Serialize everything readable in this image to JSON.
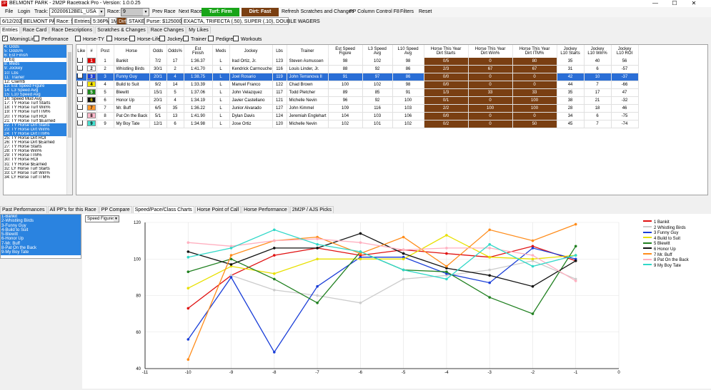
{
  "window": {
    "title": "BELMONT PARK - 2M2P Racetrack Pro - Version: 1.0.0.25",
    "minimize": "—",
    "maximize": "☐",
    "close": "✕"
  },
  "menubar": {
    "file": "File",
    "login": "Login",
    "track_label": "Track:",
    "track_value": "20200612BEL_USA",
    "race_label": "Race:",
    "race_value": "9",
    "prev_race": "Prev Race",
    "next_race": "Next Race",
    "turf": "Turf: Firm",
    "dirt": "Dirt: Fast",
    "refresh": "Refresh Scratches and Changes",
    "pp_column": "PP Column Control F8",
    "filters": "Filters",
    "reset": "Reset",
    "turf_color": "#18a418",
    "dirt_color": "#7a3f12"
  },
  "infobar": {
    "date": "6/12/2020",
    "track": "BELMONT PARK",
    "race": "Race: 9",
    "entries": "Entries: 9",
    "post_time": "5:36PM",
    "distance": "1M",
    "surface": "Dirt",
    "race_type": "STAKES",
    "purse": "Purse: $125000.00",
    "wagers": "EXACTA, TRIFECTA (.50), SUPER (.10), DOUBLE WAGERS"
  },
  "tabs_top": [
    "Entries",
    "Race Card",
    "Race Descriptions",
    "Scratches & Changes",
    "Race Changes",
    "My Likes"
  ],
  "checkbox_bar": [
    {
      "label": "MorningLine",
      "checked": true
    },
    {
      "label": "Perfomance",
      "checked": false
    },
    {
      "label": "Horse-TY",
      "checked": false
    },
    {
      "label": "Horse-LY",
      "checked": false
    },
    {
      "label": "Horse-Life",
      "checked": false
    },
    {
      "label": "Jockey",
      "checked": false
    },
    {
      "label": "Trainer",
      "checked": false
    },
    {
      "label": "Pedigree",
      "checked": false
    },
    {
      "label": "Workouts",
      "checked": false
    }
  ],
  "column_list": [
    {
      "label": "4: Odds",
      "sel": true
    },
    {
      "label": "5: Odds%",
      "sel": true
    },
    {
      "label": "6: Est Finish",
      "sel": true
    },
    {
      "label": "7: Eq",
      "sel": false
    },
    {
      "label": "8: Meds",
      "sel": true
    },
    {
      "label": "9: Jockey",
      "sel": true
    },
    {
      "label": "10: Lbs",
      "sel": true
    },
    {
      "label": "11: Trainer",
      "sel": true
    },
    {
      "label": "12: Claim$",
      "sel": false
    },
    {
      "label": "13: Est Speed Figure",
      "sel": true
    },
    {
      "label": "14: L3 Speed Avg",
      "sel": true
    },
    {
      "label": "15: L10 Speed Avg",
      "sel": true
    },
    {
      "label": "16: Speed Mud Avg",
      "sel": false
    },
    {
      "label": "17: TY Horse Turf Starts",
      "sel": false
    },
    {
      "label": "18: TY Horse Turf Win%",
      "sel": false
    },
    {
      "label": "19: TY Horse Turf ITM%",
      "sel": false
    },
    {
      "label": "20: TY Horse Turf ROI",
      "sel": false
    },
    {
      "label": "21: TY Horse Turf $Earned",
      "sel": false
    },
    {
      "label": "22: TY Horse Dirt Starts",
      "sel": true
    },
    {
      "label": "23: TY Horse Dirt Win%",
      "sel": true
    },
    {
      "label": "24: TY Horse Dirt ITM%",
      "sel": true
    },
    {
      "label": "25: TY Horse Dirt ROI",
      "sel": false
    },
    {
      "label": "26: TY Horse Dirt $Earned",
      "sel": false
    },
    {
      "label": "27: TY Horse Starts",
      "sel": false
    },
    {
      "label": "28: TY Horse Win%",
      "sel": false
    },
    {
      "label": "29: TY Horse ITM%",
      "sel": false
    },
    {
      "label": "30: TY Horse ROI",
      "sel": false
    },
    {
      "label": "31: TY Horse $Earned",
      "sel": false
    },
    {
      "label": "32: LY Horse Turf Starts",
      "sel": false
    },
    {
      "label": "33: LY Horse Turf Win%",
      "sel": false
    },
    {
      "label": "34: LY Horse Turf ITM%",
      "sel": false
    }
  ],
  "entries_table": {
    "headers": [
      "Like",
      "#",
      "Post",
      "Horse",
      "Odds",
      "Odds%",
      "Est\nFinish",
      "Meds",
      "Jockey",
      "Lbs",
      "Trainer",
      "Est Speed\nFigure",
      "L3 Speed\nAvg",
      "L10 Speed\nAvg",
      "Horse This Year\nDirt Starts",
      "Horse This Year\nDirt Win%",
      "Horse This Year\nDirt ITM%",
      "Jockey\nL10 Starts",
      "Jockey\nL10 Win%",
      "Jockey\nL10 ROI"
    ],
    "rows": [
      {
        "num": "1",
        "num_bg": "#e00000",
        "num_fg": "#ffffff",
        "post": "1",
        "horse": "Bankit",
        "odds": "7/2",
        "oddsp": "17",
        "finish": "1:36.37",
        "meds": "L",
        "jockey": "Irad Ortiz, Jr.",
        "lbs": "123",
        "trainer": "Steven Asmussen",
        "esf": "98",
        "l3": "102",
        "l10": "98",
        "ds": "0/5",
        "dw": "0",
        "ditm": "80",
        "js": "35",
        "jw": "40",
        "jroi": "56",
        "selected": false
      },
      {
        "num": "2",
        "num_bg": "#ffffff",
        "num_fg": "#000000",
        "post": "2",
        "horse": "Whistling Birds",
        "odds": "30/1",
        "oddsp": "2",
        "finish": "1:41.70",
        "meds": "L",
        "jockey": "Kendrick Carmouche",
        "lbs": "116",
        "trainer": "Louis Linder, Jr.",
        "esf": "88",
        "l3": "92",
        "l10": "86",
        "ds": "2/3",
        "dw": "67",
        "ditm": "67",
        "js": "31",
        "jw": "6",
        "jroi": "-57",
        "selected": false
      },
      {
        "num": "3",
        "num_bg": "#1a3ed8",
        "num_fg": "#ffffff",
        "post": "3",
        "horse": "Funny Guy",
        "odds": "20/1",
        "oddsp": "4",
        "finish": "1:38.75",
        "meds": "L",
        "jockey": "Joel Rosario",
        "lbs": "119",
        "trainer": "John Terranova II",
        "esf": "91",
        "l3": "97",
        "l10": "86",
        "ds": "0/0",
        "dw": "0",
        "ditm": "0",
        "js": "42",
        "jw": "10",
        "jroi": "-37",
        "selected": true
      },
      {
        "num": "4",
        "num_bg": "#f5e400",
        "num_fg": "#000000",
        "post": "4",
        "horse": "Build to Suit",
        "odds": "9/2",
        "oddsp": "14",
        "finish": "1:33.39",
        "meds": "L",
        "jockey": "Manuel Franco",
        "lbs": "122",
        "trainer": "Chad Brown",
        "esf": "100",
        "l3": "102",
        "l10": "98",
        "ds": "0/0",
        "dw": "0",
        "ditm": "0",
        "js": "44",
        "jw": "7",
        "jroi": "-66",
        "selected": false
      },
      {
        "num": "5",
        "num_bg": "#1a8a1a",
        "num_fg": "#ffffff",
        "post": "5",
        "horse": "Blewitt",
        "odds": "15/1",
        "oddsp": "5",
        "finish": "1:37.06",
        "meds": "L",
        "jockey": "John Velazquez",
        "lbs": "117",
        "trainer": "Todd Pletcher",
        "esf": "89",
        "l3": "85",
        "l10": "91",
        "ds": "1/3",
        "dw": "33",
        "ditm": "33",
        "js": "35",
        "jw": "17",
        "jroi": "47",
        "selected": false
      },
      {
        "num": "6",
        "num_bg": "#111111",
        "num_fg": "#f5e400",
        "post": "6",
        "horse": "Honor Up",
        "odds": "20/1",
        "oddsp": "4",
        "finish": "1:34.19",
        "meds": "L",
        "jockey": "Javier Castellano",
        "lbs": "121",
        "trainer": "Michelle Nevin",
        "esf": "96",
        "l3": "92",
        "l10": "100",
        "ds": "0/1",
        "dw": "0",
        "ditm": "100",
        "js": "38",
        "jw": "21",
        "jroi": "-32",
        "selected": false
      },
      {
        "num": "7",
        "num_bg": "#ff9a2e",
        "num_fg": "#000000",
        "post": "7",
        "horse": "Mr. Buff",
        "odds": "6/5",
        "oddsp": "35",
        "finish": "1:36.22",
        "meds": "L",
        "jockey": "Junior Alvarado",
        "lbs": "127",
        "trainer": "John Kimmel",
        "esf": "109",
        "l3": "116",
        "l10": "103",
        "ds": "2/2",
        "dw": "100",
        "ditm": "100",
        "js": "28",
        "jw": "18",
        "jroi": "46",
        "selected": false
      },
      {
        "num": "8",
        "num_bg": "#ffb6c8",
        "num_fg": "#000000",
        "post": "8",
        "horse": "Pat On the Back",
        "odds": "5/1",
        "oddsp": "13",
        "finish": "1:41.90",
        "meds": "L",
        "jockey": "Dylan Davis",
        "lbs": "124",
        "trainer": "Jeremiah Englehart",
        "esf": "104",
        "l3": "103",
        "l10": "106",
        "ds": "0/0",
        "dw": "0",
        "ditm": "0",
        "js": "34",
        "jw": "6",
        "jroi": "-75",
        "selected": false
      },
      {
        "num": "9",
        "num_bg": "#44e0d0",
        "num_fg": "#000000",
        "post": "9",
        "horse": "My Boy Tate",
        "odds": "12/1",
        "oddsp": "6",
        "finish": "1:34.98",
        "meds": "L",
        "jockey": "Jose Ortiz",
        "lbs": "120",
        "trainer": "Michelle Nevin",
        "esf": "102",
        "l3": "101",
        "l10": "102",
        "ds": "0/2",
        "dw": "0",
        "ditm": "50",
        "js": "45",
        "jw": "7",
        "jroi": "-74",
        "selected": false
      }
    ]
  },
  "tabs_bottom": [
    "Past Performances",
    "All PP's for this Race",
    "PP Compare",
    "Speed/Pace/Class Charts",
    "Horse Point of Call",
    "Horse Performance",
    "2M2P / AJS Picks"
  ],
  "horse_list": [
    "1-Bankit",
    "2-Whistling Birds",
    "3-Funny Guy",
    "4-Build to Suit",
    "5-Blewitt",
    "6-Honor Up",
    "7-Mr. Buff",
    "8-Pat On the Back",
    "9-My Boy Tate"
  ],
  "chart_selector": "Speed Figures",
  "chart_data": {
    "type": "line",
    "title": "",
    "xlabel": "",
    "ylabel": "",
    "xlim": [
      -11,
      0
    ],
    "ylim": [
      40,
      120
    ],
    "xticks": [
      "-11",
      "-10",
      "-9",
      "-8",
      "-7",
      "-6",
      "-5",
      "-4",
      "-3",
      "-2",
      "-1",
      "0"
    ],
    "yticks": [
      "40",
      "60",
      "80",
      "100",
      "120"
    ],
    "grid": true,
    "legend_position": "right",
    "x": [
      -10,
      -9,
      -8,
      -7,
      -6,
      -5,
      -4,
      -3,
      -2,
      -1
    ],
    "series": [
      {
        "name": "1 Bankit",
        "color": "#e01010",
        "values": [
          73,
          91,
          102,
          106,
          102,
          105,
          103,
          101,
          107,
          99
        ]
      },
      {
        "name": "2 Whistling Birds",
        "color": "#cccccc",
        "values": [
          null,
          91,
          83,
          80,
          76,
          89,
          91,
          94,
          99,
          89
        ]
      },
      {
        "name": "3 Funny Guy",
        "color": "#1a3ed8",
        "values": [
          56,
          90,
          49,
          85,
          101,
          101,
          92,
          87,
          106,
          100
        ]
      },
      {
        "name": "4 Build to Suit",
        "color": "#e8e000",
        "values": [
          84,
          96,
          92,
          100,
          100,
          100,
          113,
          101,
          100,
          102
        ]
      },
      {
        "name": "5 Blewitt",
        "color": "#208020",
        "values": [
          93,
          100,
          89,
          76,
          104,
          94,
          93,
          79,
          70,
          107
        ]
      },
      {
        "name": "6 Honor Up",
        "color": "#111111",
        "values": [
          104,
          97,
          106,
          106,
          114,
          103,
          95,
          91,
          85,
          99
        ]
      },
      {
        "name": "7 Mr. Buff",
        "color": "#ff8c1a",
        "values": [
          45,
          102,
          110,
          112,
          103,
          112,
          96,
          116,
          110,
          119
        ]
      },
      {
        "name": "8 Pat On the Back",
        "color": "#ffb0c0",
        "values": [
          109,
          107,
          110,
          111,
          109,
          105,
          106,
          106,
          102,
          88
        ]
      },
      {
        "name": "9 My Boy Tate",
        "color": "#30d8c8",
        "values": [
          101,
          106,
          116,
          108,
          104,
          94,
          89,
          108,
          96,
          102
        ]
      }
    ]
  }
}
